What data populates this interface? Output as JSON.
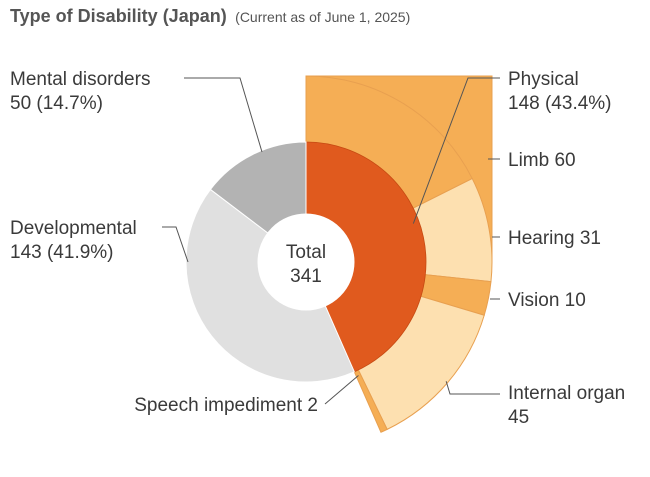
{
  "chart_data": {
    "type": "pie",
    "title": "Type of Disability (Japan)",
    "subtitle": "(Current as of June 1, 2025)",
    "center_label": "Total",
    "total": 341,
    "inner_ring": [
      {
        "label": "Physical",
        "value": 148,
        "label_text": "Physical",
        "value_text": "148 (43.4%)",
        "color": "#e05a1e"
      },
      {
        "label": "Developmental",
        "value": 143,
        "label_text": "Developmental",
        "value_text": "143 (41.9%)",
        "color": "#e0e0e0"
      },
      {
        "label": "Mental disorders",
        "value": 50,
        "label_text": "Mental disorders",
        "value_text": "50 (14.7%)",
        "color": "#b3b3b3"
      }
    ],
    "outer_ring": [
      {
        "label": "Limb",
        "value": 60,
        "label_text": "Limb 60",
        "color": "#f5ae55"
      },
      {
        "label": "Hearing",
        "value": 31,
        "label_text": "Hearing 31",
        "color": "#fde0b0"
      },
      {
        "label": "Vision",
        "value": 10,
        "label_text": "Vision 10",
        "color": "#f5ae55"
      },
      {
        "label": "Internal organ",
        "value": 45,
        "label_text": "Internal organ",
        "value_text": "45",
        "color": "#fde0b0"
      },
      {
        "label": "Speech impediment",
        "value": 2,
        "label_text": "Speech impediment 2",
        "color": "#f5ae55"
      }
    ],
    "colors": {
      "outline": "#e8a050",
      "leader": "#555555",
      "text": "#3a3a3a",
      "center_fill": "#ffffff"
    }
  }
}
